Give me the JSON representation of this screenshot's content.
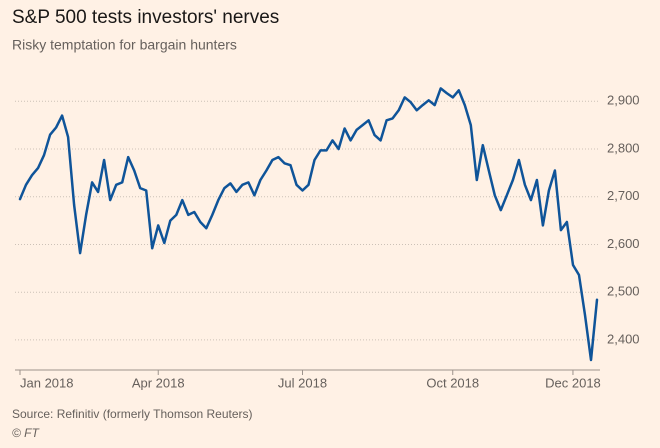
{
  "chart_data": {
    "type": "line",
    "title": "S&P 500 tests investors' nerves",
    "subtitle": "Risky temptation for bargain hunters",
    "source": "Source: Refinitiv (formerly Thomson Reuters)",
    "credit": "© FT",
    "color": "#0f5499",
    "grid": true,
    "categories": [
      "Jan 2018",
      null,
      null,
      null,
      null,
      null,
      null,
      null,
      null,
      null,
      null,
      null,
      null,
      null,
      null,
      null,
      null,
      null,
      null,
      null,
      null,
      null,
      null,
      "Apr 2018",
      null,
      null,
      null,
      null,
      null,
      null,
      null,
      null,
      null,
      null,
      null,
      null,
      null,
      null,
      null,
      null,
      null,
      null,
      null,
      null,
      null,
      null,
      null,
      "Jul 2018",
      null,
      null,
      null,
      null,
      null,
      null,
      null,
      null,
      null,
      null,
      null,
      null,
      null,
      null,
      null,
      null,
      null,
      null,
      null,
      null,
      null,
      null,
      null,
      null,
      "Oct 2018",
      null,
      null,
      null,
      null,
      null,
      null,
      null,
      null,
      null,
      null,
      null,
      null,
      null,
      null,
      null,
      null,
      null,
      null,
      null,
      "Dec 2018",
      null,
      null,
      null,
      null
    ],
    "values": [
      2695,
      2725,
      2745,
      2760,
      2787,
      2830,
      2845,
      2870,
      2825,
      2683,
      2582,
      2662,
      2730,
      2710,
      2777,
      2693,
      2725,
      2730,
      2783,
      2755,
      2718,
      2713,
      2592,
      2640,
      2603,
      2650,
      2662,
      2693,
      2662,
      2668,
      2647,
      2634,
      2662,
      2693,
      2718,
      2728,
      2710,
      2725,
      2730,
      2703,
      2735,
      2755,
      2777,
      2783,
      2770,
      2766,
      2725,
      2713,
      2725,
      2777,
      2797,
      2797,
      2818,
      2800,
      2843,
      2818,
      2840,
      2850,
      2860,
      2829,
      2818,
      2860,
      2864,
      2881,
      2908,
      2898,
      2881,
      2892,
      2902,
      2892,
      2927,
      2917,
      2908,
      2923,
      2892,
      2850,
      2735,
      2808,
      2755,
      2703,
      2672,
      2703,
      2735,
      2777,
      2725,
      2693,
      2735,
      2640,
      2713,
      2755,
      2630,
      2647,
      2557,
      2536,
      2452,
      2358,
      2484
    ],
    "ylim": [
      2337,
      2955
    ],
    "yticks": [
      {
        "value": 2400,
        "label": "2,400"
      },
      {
        "value": 2500,
        "label": "2,500"
      },
      {
        "value": 2600,
        "label": "2,600"
      },
      {
        "value": 2700,
        "label": "2,700"
      },
      {
        "value": 2800,
        "label": "2,800"
      },
      {
        "value": 2900,
        "label": "2,900"
      }
    ]
  }
}
